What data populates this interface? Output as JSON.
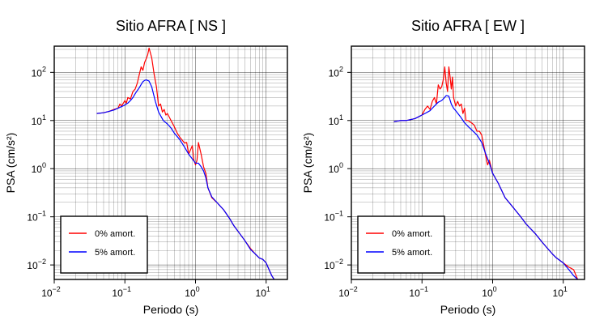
{
  "chart_data": [
    {
      "type": "line",
      "title": "Sitio AFRA [ NS ]",
      "xlabel": "Periodo (s)",
      "ylabel": "PSA (cm/s²)",
      "x_scale": "log",
      "y_scale": "log",
      "xlim": [
        0.01,
        20
      ],
      "ylim": [
        0.005,
        350
      ],
      "x_ticks": [
        {
          "base": "10",
          "exp": "−2"
        },
        {
          "base": "10",
          "exp": "−1"
        },
        {
          "base": "10",
          "exp": "0"
        },
        {
          "base": "10",
          "exp": "1"
        }
      ],
      "y_ticks": [
        {
          "base": "10",
          "exp": "−2"
        },
        {
          "base": "10",
          "exp": "−1"
        },
        {
          "base": "10",
          "exp": "0"
        },
        {
          "base": "10",
          "exp": "1"
        },
        {
          "base": "10",
          "exp": "2"
        }
      ],
      "grid": true,
      "legend_position": "bottom-left",
      "series": [
        {
          "name": "0% amort.",
          "color": "#ff0000",
          "points": [
            [
              0.04,
              14
            ],
            [
              0.05,
              14.5
            ],
            [
              0.06,
              15.5
            ],
            [
              0.07,
              17
            ],
            [
              0.08,
              18
            ],
            [
              0.085,
              22
            ],
            [
              0.09,
              20
            ],
            [
              0.1,
              26
            ],
            [
              0.105,
              23
            ],
            [
              0.11,
              30
            ],
            [
              0.12,
              28
            ],
            [
              0.13,
              40
            ],
            [
              0.14,
              45
            ],
            [
              0.15,
              60
            ],
            [
              0.16,
              90
            ],
            [
              0.17,
              130
            ],
            [
              0.18,
              110
            ],
            [
              0.19,
              160
            ],
            [
              0.2,
              190
            ],
            [
              0.21,
              230
            ],
            [
              0.22,
              320
            ],
            [
              0.24,
              200
            ],
            [
              0.26,
              90
            ],
            [
              0.28,
              50
            ],
            [
              0.3,
              20
            ],
            [
              0.32,
              22
            ],
            [
              0.34,
              15
            ],
            [
              0.36,
              17
            ],
            [
              0.38,
              13
            ],
            [
              0.4,
              14
            ],
            [
              0.45,
              10
            ],
            [
              0.5,
              7.5
            ],
            [
              0.55,
              5.5
            ],
            [
              0.6,
              4.5
            ],
            [
              0.7,
              3.4
            ],
            [
              0.75,
              3.5
            ],
            [
              0.8,
              2
            ],
            [
              0.9,
              3
            ],
            [
              0.95,
              1.5
            ],
            [
              1.0,
              1.2
            ],
            [
              1.05,
              1.5
            ],
            [
              1.1,
              3.5
            ],
            [
              1.2,
              2
            ],
            [
              1.3,
              1.1
            ],
            [
              1.4,
              0.8
            ],
            [
              1.5,
              0.4
            ],
            [
              1.7,
              0.25
            ],
            [
              2.0,
              0.2
            ],
            [
              2.5,
              0.14
            ],
            [
              3,
              0.095
            ],
            [
              3.5,
              0.065
            ],
            [
              4,
              0.05
            ],
            [
              5,
              0.032
            ],
            [
              6,
              0.022
            ],
            [
              7,
              0.017
            ],
            [
              8,
              0.014
            ],
            [
              9,
              0.013
            ],
            [
              10,
              0.011
            ],
            [
              11,
              0.008
            ],
            [
              12,
              0.006
            ],
            [
              13,
              0.005
            ]
          ]
        },
        {
          "name": "5% amort.",
          "color": "#0000ff",
          "points": [
            [
              0.04,
              14
            ],
            [
              0.05,
              14.5
            ],
            [
              0.06,
              15.5
            ],
            [
              0.07,
              16.5
            ],
            [
              0.08,
              18
            ],
            [
              0.09,
              19.5
            ],
            [
              0.1,
              21
            ],
            [
              0.11,
              23
            ],
            [
              0.12,
              26
            ],
            [
              0.13,
              30
            ],
            [
              0.14,
              36
            ],
            [
              0.15,
              42
            ],
            [
              0.16,
              48
            ],
            [
              0.17,
              56
            ],
            [
              0.18,
              64
            ],
            [
              0.19,
              68
            ],
            [
              0.2,
              70
            ],
            [
              0.22,
              66
            ],
            [
              0.24,
              50
            ],
            [
              0.27,
              25
            ],
            [
              0.3,
              15
            ],
            [
              0.35,
              10
            ],
            [
              0.4,
              8.5
            ],
            [
              0.45,
              7
            ],
            [
              0.5,
              5.5
            ],
            [
              0.6,
              4
            ],
            [
              0.7,
              2.8
            ],
            [
              0.8,
              2
            ],
            [
              0.9,
              1.6
            ],
            [
              1.0,
              1.3
            ],
            [
              1.1,
              1.3
            ],
            [
              1.2,
              1.1
            ],
            [
              1.3,
              0.9
            ],
            [
              1.4,
              0.65
            ],
            [
              1.5,
              0.4
            ],
            [
              1.7,
              0.26
            ],
            [
              2.0,
              0.2
            ],
            [
              2.5,
              0.14
            ],
            [
              3,
              0.095
            ],
            [
              3.5,
              0.065
            ],
            [
              4,
              0.05
            ],
            [
              5,
              0.032
            ],
            [
              6,
              0.021
            ],
            [
              7,
              0.017
            ],
            [
              8,
              0.014
            ],
            [
              9,
              0.013
            ],
            [
              10,
              0.011
            ],
            [
              11,
              0.008
            ],
            [
              12,
              0.006
            ],
            [
              13,
              0.005
            ]
          ]
        }
      ]
    },
    {
      "type": "line",
      "title": "Sitio AFRA [ EW ]",
      "xlabel": "Periodo (s)",
      "ylabel": "PSA (cm/s²)",
      "x_scale": "log",
      "y_scale": "log",
      "xlim": [
        0.01,
        20
      ],
      "ylim": [
        0.005,
        350
      ],
      "x_ticks": [
        {
          "base": "10",
          "exp": "−2"
        },
        {
          "base": "10",
          "exp": "−1"
        },
        {
          "base": "10",
          "exp": "0"
        },
        {
          "base": "10",
          "exp": "1"
        }
      ],
      "y_ticks": [
        {
          "base": "10",
          "exp": "−2"
        },
        {
          "base": "10",
          "exp": "−1"
        },
        {
          "base": "10",
          "exp": "0"
        },
        {
          "base": "10",
          "exp": "1"
        },
        {
          "base": "10",
          "exp": "2"
        }
      ],
      "grid": true,
      "legend_position": "bottom-left",
      "series": [
        {
          "name": "0% amort.",
          "color": "#ff0000",
          "points": [
            [
              0.04,
              9.5
            ],
            [
              0.05,
              10
            ],
            [
              0.06,
              10
            ],
            [
              0.07,
              10.5
            ],
            [
              0.08,
              11
            ],
            [
              0.09,
              12
            ],
            [
              0.1,
              13
            ],
            [
              0.11,
              17
            ],
            [
              0.12,
              20
            ],
            [
              0.13,
              17
            ],
            [
              0.14,
              25
            ],
            [
              0.15,
              30
            ],
            [
              0.16,
              22
            ],
            [
              0.17,
              55
            ],
            [
              0.18,
              45
            ],
            [
              0.19,
              50
            ],
            [
              0.2,
              70
            ],
            [
              0.21,
              130
            ],
            [
              0.22,
              60
            ],
            [
              0.23,
              40
            ],
            [
              0.24,
              130
            ],
            [
              0.25,
              80
            ],
            [
              0.26,
              45
            ],
            [
              0.27,
              80
            ],
            [
              0.28,
              30
            ],
            [
              0.3,
              20
            ],
            [
              0.32,
              25
            ],
            [
              0.34,
              20
            ],
            [
              0.36,
              22
            ],
            [
              0.38,
              14
            ],
            [
              0.4,
              18
            ],
            [
              0.42,
              10
            ],
            [
              0.45,
              10
            ],
            [
              0.5,
              9
            ],
            [
              0.55,
              8
            ],
            [
              0.6,
              6
            ],
            [
              0.65,
              6
            ],
            [
              0.7,
              5
            ],
            [
              0.75,
              3
            ],
            [
              0.8,
              1.8
            ],
            [
              0.85,
              1.2
            ],
            [
              0.9,
              1.5
            ],
            [
              1.0,
              0.8
            ],
            [
              1.2,
              0.5
            ],
            [
              1.5,
              0.25
            ],
            [
              2,
              0.15
            ],
            [
              2.5,
              0.1
            ],
            [
              3,
              0.07
            ],
            [
              4,
              0.045
            ],
            [
              5,
              0.03
            ],
            [
              6,
              0.022
            ],
            [
              7,
              0.017
            ],
            [
              8,
              0.014
            ],
            [
              10,
              0.011
            ],
            [
              12,
              0.009
            ],
            [
              14,
              0.008
            ],
            [
              16,
              0.005
            ]
          ]
        },
        {
          "name": "5% amort.",
          "color": "#0000ff",
          "points": [
            [
              0.04,
              9.5
            ],
            [
              0.05,
              10
            ],
            [
              0.06,
              10
            ],
            [
              0.07,
              10.5
            ],
            [
              0.08,
              11
            ],
            [
              0.09,
              12
            ],
            [
              0.1,
              13
            ],
            [
              0.11,
              14
            ],
            [
              0.12,
              15
            ],
            [
              0.13,
              16
            ],
            [
              0.14,
              18
            ],
            [
              0.15,
              20
            ],
            [
              0.16,
              22
            ],
            [
              0.17,
              24
            ],
            [
              0.18,
              25
            ],
            [
              0.19,
              26
            ],
            [
              0.2,
              28
            ],
            [
              0.22,
              33
            ],
            [
              0.24,
              32
            ],
            [
              0.26,
              22
            ],
            [
              0.28,
              18
            ],
            [
              0.3,
              16
            ],
            [
              0.35,
              12
            ],
            [
              0.4,
              9
            ],
            [
              0.45,
              7.5
            ],
            [
              0.5,
              6.5
            ],
            [
              0.6,
              5
            ],
            [
              0.7,
              3.5
            ],
            [
              0.8,
              2
            ],
            [
              0.9,
              1.3
            ],
            [
              1.0,
              0.8
            ],
            [
              1.2,
              0.5
            ],
            [
              1.5,
              0.25
            ],
            [
              2,
              0.15
            ],
            [
              2.5,
              0.1
            ],
            [
              3,
              0.07
            ],
            [
              4,
              0.045
            ],
            [
              5,
              0.03
            ],
            [
              6,
              0.022
            ],
            [
              7,
              0.017
            ],
            [
              8,
              0.014
            ],
            [
              10,
              0.011
            ],
            [
              12,
              0.008
            ],
            [
              14,
              0.006
            ],
            [
              16,
              0.005
            ]
          ]
        }
      ]
    }
  ]
}
